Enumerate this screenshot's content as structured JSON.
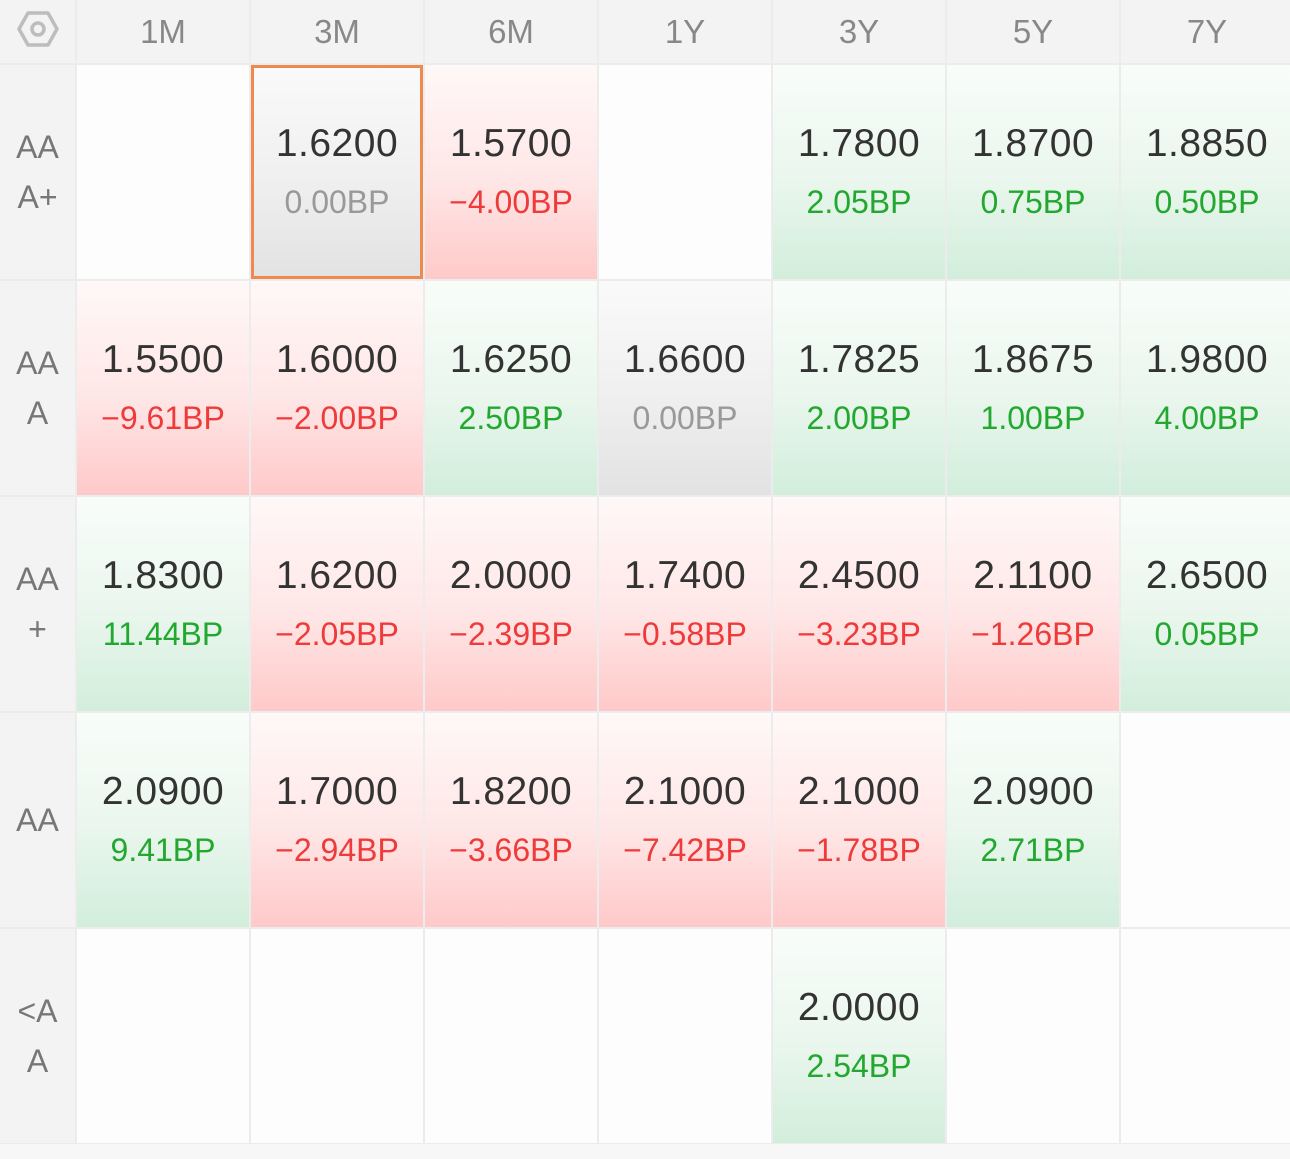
{
  "header": {
    "settings_icon": "hexagon-settings-icon",
    "columns": [
      "1M",
      "3M",
      "6M",
      "1Y",
      "3Y",
      "5Y",
      "7Y"
    ]
  },
  "colors": {
    "up": "#22a82f",
    "down": "#ef3a3a",
    "flat": "#999999",
    "selected_border": "#f0894d"
  },
  "rows": [
    {
      "label": "AA\nA+",
      "cells": [
        {
          "rate": "",
          "change": "",
          "trend": "empty"
        },
        {
          "rate": "1.6200",
          "change": "0.00BP",
          "trend": "flat",
          "selected": true
        },
        {
          "rate": "1.5700",
          "change": "−4.00BP",
          "trend": "down"
        },
        {
          "rate": "",
          "change": "",
          "trend": "empty"
        },
        {
          "rate": "1.7800",
          "change": "2.05BP",
          "trend": "up"
        },
        {
          "rate": "1.8700",
          "change": "0.75BP",
          "trend": "up"
        },
        {
          "rate": "1.8850",
          "change": "0.50BP",
          "trend": "up"
        }
      ]
    },
    {
      "label": "AA\nA",
      "cells": [
        {
          "rate": "1.5500",
          "change": "−9.61BP",
          "trend": "down"
        },
        {
          "rate": "1.6000",
          "change": "−2.00BP",
          "trend": "down"
        },
        {
          "rate": "1.6250",
          "change": "2.50BP",
          "trend": "up"
        },
        {
          "rate": "1.6600",
          "change": "0.00BP",
          "trend": "flat"
        },
        {
          "rate": "1.7825",
          "change": "2.00BP",
          "trend": "up"
        },
        {
          "rate": "1.8675",
          "change": "1.00BP",
          "trend": "up"
        },
        {
          "rate": "1.9800",
          "change": "4.00BP",
          "trend": "up"
        }
      ]
    },
    {
      "label": "AA\n+",
      "cells": [
        {
          "rate": "1.8300",
          "change": "11.44BP",
          "trend": "up"
        },
        {
          "rate": "1.6200",
          "change": "−2.05BP",
          "trend": "down"
        },
        {
          "rate": "2.0000",
          "change": "−2.39BP",
          "trend": "down"
        },
        {
          "rate": "1.7400",
          "change": "−0.58BP",
          "trend": "down"
        },
        {
          "rate": "2.4500",
          "change": "−3.23BP",
          "trend": "down"
        },
        {
          "rate": "2.1100",
          "change": "−1.26BP",
          "trend": "down"
        },
        {
          "rate": "2.6500",
          "change": "0.05BP",
          "trend": "up"
        }
      ]
    },
    {
      "label": "AA",
      "cells": [
        {
          "rate": "2.0900",
          "change": "9.41BP",
          "trend": "up"
        },
        {
          "rate": "1.7000",
          "change": "−2.94BP",
          "trend": "down"
        },
        {
          "rate": "1.8200",
          "change": "−3.66BP",
          "trend": "down"
        },
        {
          "rate": "2.1000",
          "change": "−7.42BP",
          "trend": "down"
        },
        {
          "rate": "2.1000",
          "change": "−1.78BP",
          "trend": "down"
        },
        {
          "rate": "2.0900",
          "change": "2.71BP",
          "trend": "up"
        },
        {
          "rate": "",
          "change": "",
          "trend": "empty"
        }
      ]
    },
    {
      "label": "<A\nA",
      "cells": [
        {
          "rate": "",
          "change": "",
          "trend": "empty"
        },
        {
          "rate": "",
          "change": "",
          "trend": "empty"
        },
        {
          "rate": "",
          "change": "",
          "trend": "empty"
        },
        {
          "rate": "",
          "change": "",
          "trend": "empty"
        },
        {
          "rate": "2.0000",
          "change": "2.54BP",
          "trend": "up"
        },
        {
          "rate": "",
          "change": "",
          "trend": "empty"
        },
        {
          "rate": "",
          "change": "",
          "trend": "empty"
        }
      ]
    }
  ]
}
